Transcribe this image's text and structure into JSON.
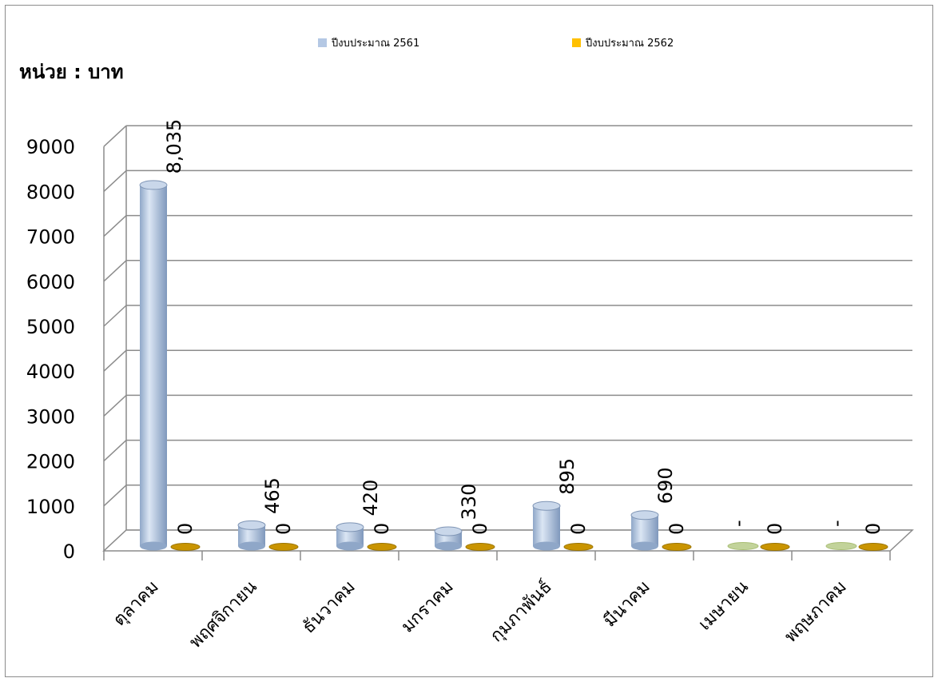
{
  "chart_data": {
    "type": "bar",
    "unit_label": "หน่วย : บาท",
    "categories": [
      "ตุลาคม",
      "พฤศจิกายน",
      "ธันวาคม",
      "มกราคม",
      "กุมภาพันธ์",
      "มีนาคม",
      "เมษายน",
      "พฤษภาคม"
    ],
    "series": [
      {
        "name": "ปีงบประมาณ 2561",
        "color": "#b4c8e4",
        "values": [
          8035,
          465,
          420,
          330,
          895,
          690,
          null,
          null
        ],
        "data_labels": [
          "8,035",
          "465",
          "420",
          "330",
          "895",
          "690",
          "-",
          "-"
        ]
      },
      {
        "name": "ปีงบประมาณ 2562",
        "color": "#ffc000",
        "values": [
          0,
          0,
          0,
          0,
          0,
          0,
          0,
          0
        ],
        "data_labels": [
          "0",
          "0",
          "0",
          "0",
          "0",
          "0",
          "0",
          "0"
        ]
      }
    ],
    "y_ticks": [
      "0",
      "1000",
      "2000",
      "3000",
      "4000",
      "5000",
      "6000",
      "7000",
      "8000",
      "9000"
    ],
    "ylim": [
      0,
      9000
    ],
    "grid": true,
    "legend_position": "top",
    "style": "3d-cylinder"
  }
}
